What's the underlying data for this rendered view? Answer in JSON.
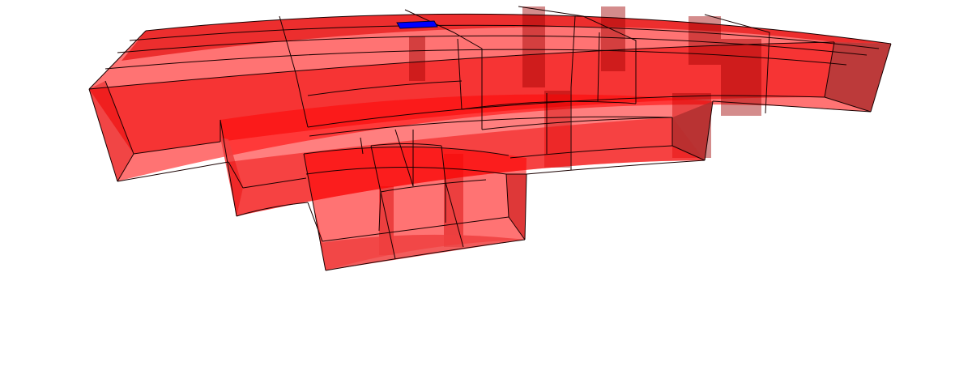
{
  "scene": {
    "background_color": "#ffffff",
    "solid_color": "#ff0000",
    "edge_color": "#1a0000",
    "highlight_color": "#0000ff",
    "highlighted_cells": 1
  }
}
